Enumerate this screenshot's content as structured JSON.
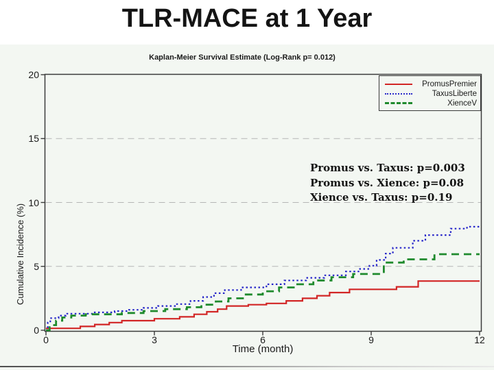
{
  "slide": {
    "title": "TLR-MACE at 1 Year"
  },
  "chart_data": {
    "type": "line",
    "subtype": "kaplan-meier-step",
    "title": "Kaplan-Meier Survival Estimate (Log-Rank p= 0.012)",
    "xlabel": "Time (month)",
    "ylabel": "Cumulative Incidence (%)",
    "xlim": [
      0,
      12
    ],
    "ylim": [
      0,
      20
    ],
    "xticks": [
      0,
      3,
      6,
      9,
      12
    ],
    "yticks": [
      0,
      5,
      10,
      15,
      20
    ],
    "gridlines_y": [
      5,
      10,
      15
    ],
    "grid": "dashed-horizontal",
    "legend_position": "top-right-inside",
    "frame_color": "#3a3a3a",
    "series": [
      {
        "name": "PromusPremier",
        "color": "#d22525",
        "line_style": "solid",
        "points": [
          [
            0,
            0.15
          ],
          [
            0.95,
            0.3
          ],
          [
            1.35,
            0.45
          ],
          [
            1.75,
            0.6
          ],
          [
            2.1,
            0.75
          ],
          [
            3.0,
            0.9
          ],
          [
            3.7,
            1.05
          ],
          [
            4.1,
            1.25
          ],
          [
            4.45,
            1.45
          ],
          [
            4.75,
            1.65
          ],
          [
            5.0,
            1.9
          ],
          [
            5.6,
            2.0
          ],
          [
            6.1,
            2.1
          ],
          [
            6.65,
            2.3
          ],
          [
            7.1,
            2.5
          ],
          [
            7.5,
            2.7
          ],
          [
            7.85,
            2.95
          ],
          [
            8.4,
            3.2
          ],
          [
            9.7,
            3.4
          ],
          [
            10.3,
            3.85
          ],
          [
            12,
            3.85
          ]
        ]
      },
      {
        "name": "TaxusLiberte",
        "color": "#2626c9",
        "line_style": "dotted",
        "points": [
          [
            0,
            0
          ],
          [
            0.05,
            0.6
          ],
          [
            0.12,
            0.95
          ],
          [
            0.35,
            1.15
          ],
          [
            0.55,
            1.3
          ],
          [
            1.3,
            1.4
          ],
          [
            1.9,
            1.5
          ],
          [
            2.3,
            1.6
          ],
          [
            2.7,
            1.75
          ],
          [
            3.1,
            1.9
          ],
          [
            3.6,
            2.05
          ],
          [
            4.0,
            2.3
          ],
          [
            4.35,
            2.6
          ],
          [
            4.65,
            2.9
          ],
          [
            4.95,
            3.15
          ],
          [
            5.4,
            3.35
          ],
          [
            6.1,
            3.6
          ],
          [
            6.6,
            3.9
          ],
          [
            7.2,
            4.1
          ],
          [
            7.7,
            4.3
          ],
          [
            8.3,
            4.6
          ],
          [
            8.65,
            4.8
          ],
          [
            8.95,
            5.05
          ],
          [
            9.15,
            5.5
          ],
          [
            9.4,
            6.0
          ],
          [
            9.6,
            6.45
          ],
          [
            10.15,
            7.0
          ],
          [
            10.5,
            7.45
          ],
          [
            11.2,
            7.95
          ],
          [
            11.65,
            8.1
          ],
          [
            12,
            8.1
          ]
        ]
      },
      {
        "name": "XienceV",
        "color": "#1f8a2d",
        "line_style": "dashed",
        "points": [
          [
            0,
            0
          ],
          [
            0.1,
            0.4
          ],
          [
            0.28,
            0.75
          ],
          [
            0.45,
            1.0
          ],
          [
            0.7,
            1.15
          ],
          [
            1.1,
            1.25
          ],
          [
            2.1,
            1.35
          ],
          [
            2.7,
            1.5
          ],
          [
            3.3,
            1.65
          ],
          [
            3.9,
            1.8
          ],
          [
            4.3,
            2.0
          ],
          [
            4.7,
            2.25
          ],
          [
            5.05,
            2.5
          ],
          [
            5.5,
            2.8
          ],
          [
            6.0,
            3.05
          ],
          [
            6.45,
            3.35
          ],
          [
            6.9,
            3.6
          ],
          [
            7.4,
            3.9
          ],
          [
            7.9,
            4.15
          ],
          [
            8.5,
            4.4
          ],
          [
            9.35,
            5.3
          ],
          [
            9.9,
            5.55
          ],
          [
            10.75,
            5.95
          ],
          [
            12,
            5.95
          ]
        ]
      }
    ],
    "annotations": [
      "Promus vs. Taxus: p=0.003",
      "Promus vs. Xience: p=0.08",
      "Xience vs. Taxus: p=0.19"
    ]
  }
}
